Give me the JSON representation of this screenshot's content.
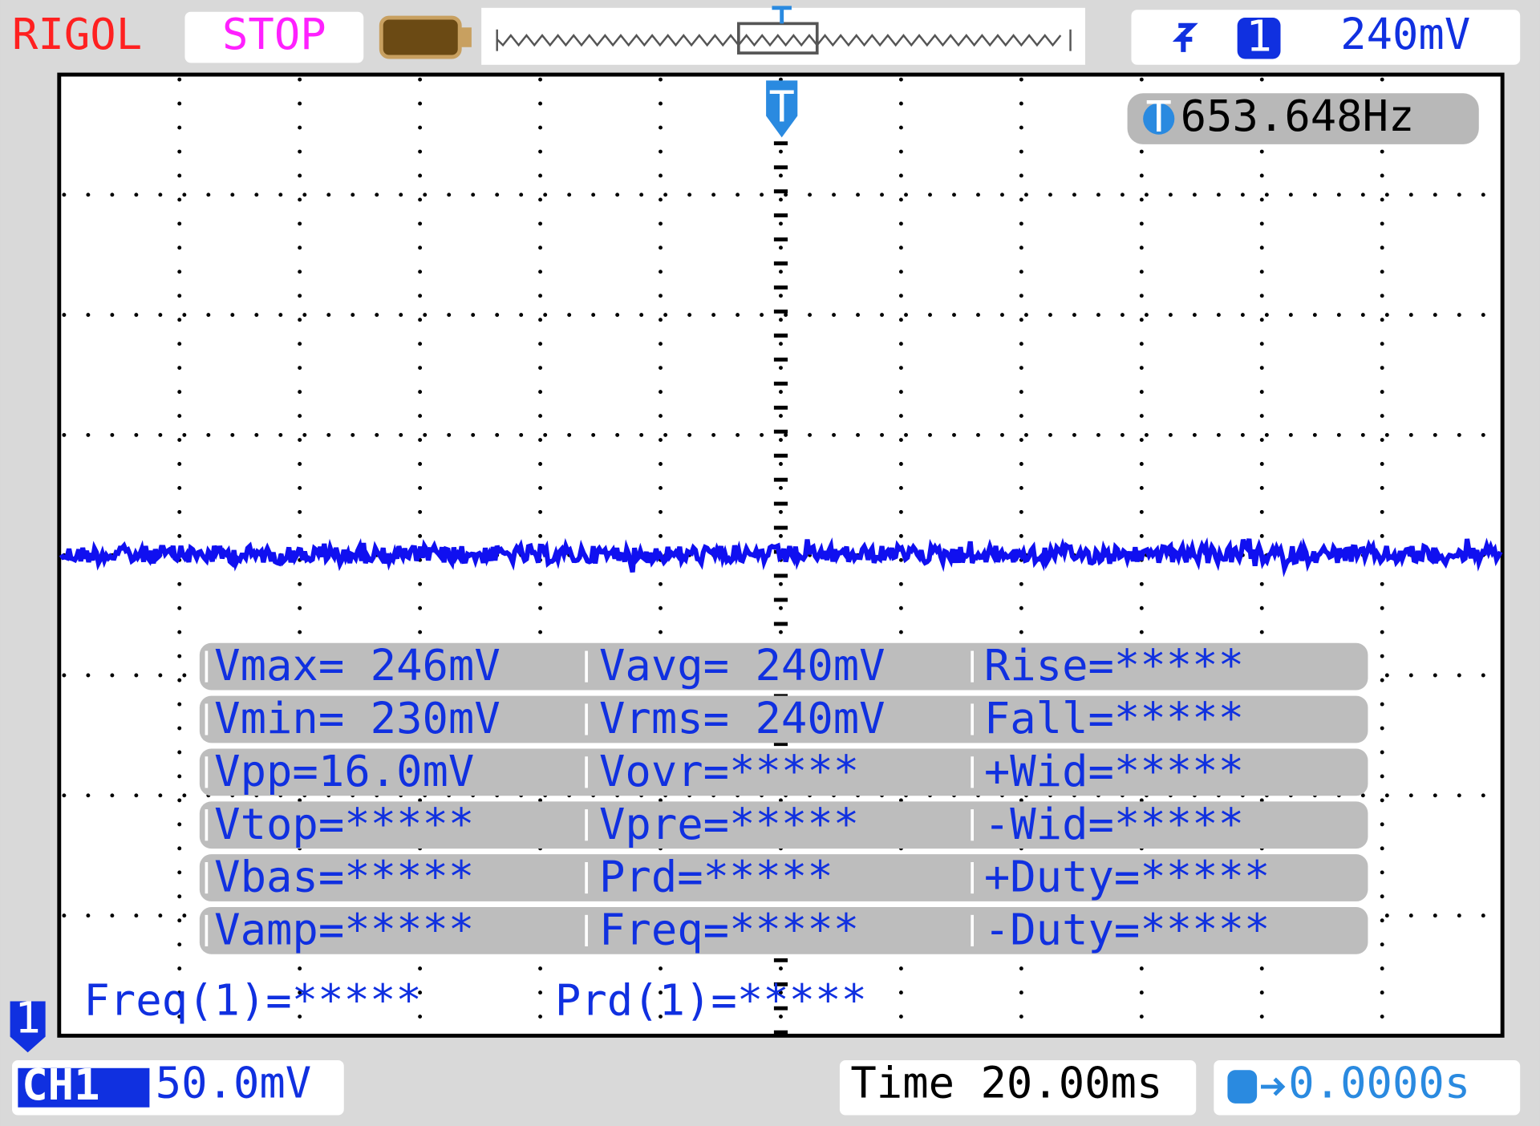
{
  "header": {
    "brand": "RIGOL",
    "status": "STOP",
    "trigger": {
      "source": "1",
      "level": "240mV"
    }
  },
  "markers": {
    "trigger": "T",
    "channel": "1"
  },
  "frequency_counter": "653.648Hz",
  "measurements": [
    [
      "Vmax= 246mV",
      "Vavg= 240mV",
      "Rise=*****"
    ],
    [
      "Vmin= 230mV",
      "Vrms= 240mV",
      "Fall=*****"
    ],
    [
      "Vpp=16.0mV",
      "Vovr=*****",
      "+Wid=*****"
    ],
    [
      "Vtop=*****",
      "Vpre=*****",
      "-Wid=*****"
    ],
    [
      "Vbas=*****",
      "Prd=*****",
      "+Duty=*****"
    ],
    [
      "Vamp=*****",
      "Freq=*****",
      "-Duty=*****"
    ]
  ],
  "bottom_measurements": [
    "Freq(1)=*****",
    "Prd(1)=*****"
  ],
  "footer": {
    "channel": "CH1",
    "scale": "50.0mV",
    "timebase": "Time 20.00ms",
    "trigger_offset": "0.0000s"
  }
}
